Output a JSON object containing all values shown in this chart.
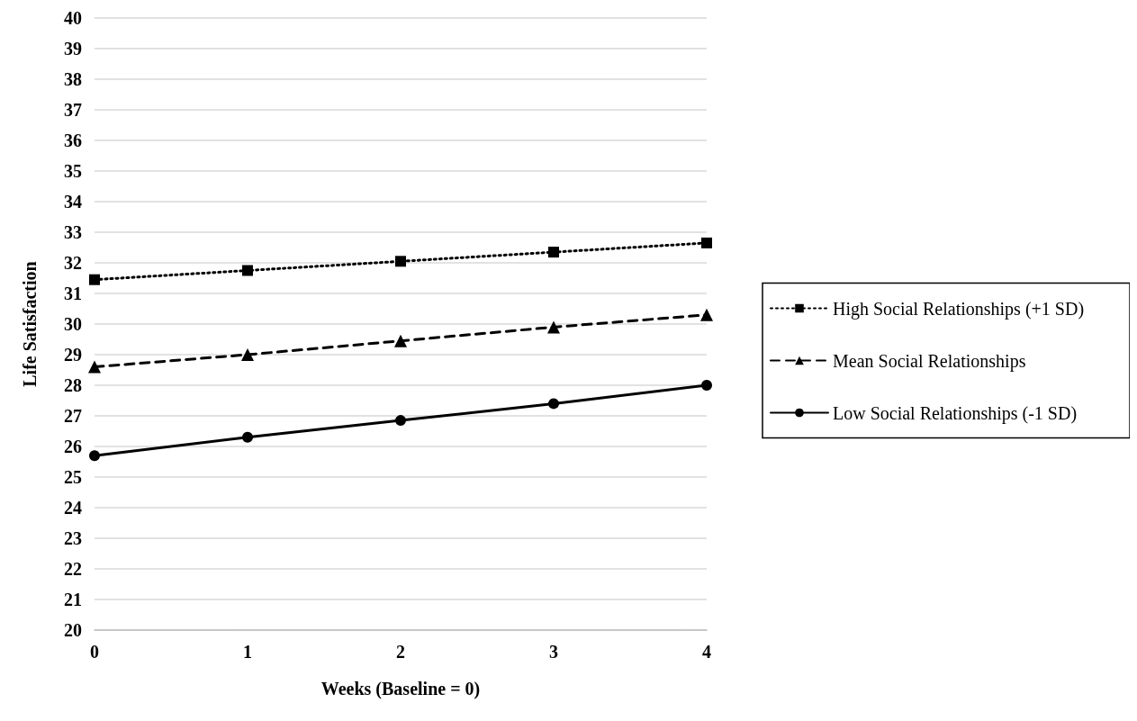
{
  "chart_data": {
    "type": "line",
    "xlabel": "Weeks (Baseline = 0)",
    "ylabel": "Life Satisfaction",
    "x": [
      0,
      1,
      2,
      3,
      4
    ],
    "xlim": [
      0,
      4
    ],
    "xticks": [
      0,
      1,
      2,
      3,
      4
    ],
    "ylim": [
      20,
      40
    ],
    "yticks": [
      20,
      21,
      22,
      23,
      24,
      25,
      26,
      27,
      28,
      29,
      30,
      31,
      32,
      33,
      34,
      35,
      36,
      37,
      38,
      39,
      40
    ],
    "grid": "y",
    "legend": "right",
    "series": [
      {
        "name": "High Social Relationships (+1 SD)",
        "color": "#000000",
        "marker": "square",
        "line_style": "dotted",
        "values": [
          31.45,
          31.75,
          32.05,
          32.35,
          32.65
        ]
      },
      {
        "name": "Mean Social Relationships",
        "color": "#000000",
        "marker": "triangle",
        "line_style": "dashed",
        "values": [
          28.6,
          29.0,
          29.45,
          29.9,
          30.3
        ]
      },
      {
        "name": "Low Social Relationships (-1 SD)",
        "color": "#000000",
        "marker": "circle",
        "line_style": "solid",
        "values": [
          25.7,
          26.3,
          26.85,
          27.4,
          28.0
        ]
      }
    ]
  }
}
